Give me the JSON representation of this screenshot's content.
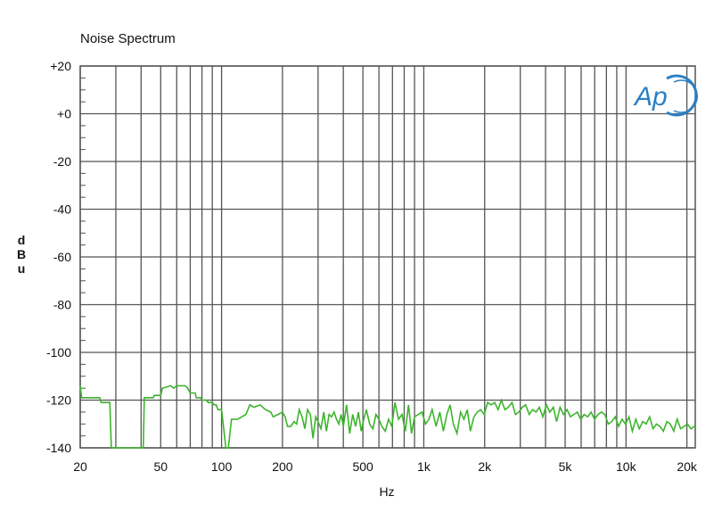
{
  "chart_data": {
    "type": "line",
    "title": "Noise Spectrum",
    "xlabel": "Hz",
    "ylabel": "dBu",
    "xscale": "log",
    "xlim": [
      20,
      22000
    ],
    "ylim": [
      -140,
      20
    ],
    "grid": true,
    "x_ticks": [
      {
        "value": 20,
        "label": "20"
      },
      {
        "value": 50,
        "label": "50"
      },
      {
        "value": 100,
        "label": "100"
      },
      {
        "value": 200,
        "label": "200"
      },
      {
        "value": 500,
        "label": "500"
      },
      {
        "value": 1000,
        "label": "1k"
      },
      {
        "value": 2000,
        "label": "2k"
      },
      {
        "value": 5000,
        "label": "5k"
      },
      {
        "value": 10000,
        "label": "10k"
      },
      {
        "value": 20000,
        "label": "20k"
      }
    ],
    "y_ticks": [
      {
        "value": 20,
        "label": "+20"
      },
      {
        "value": 0,
        "label": "+0"
      },
      {
        "value": -20,
        "label": "-20"
      },
      {
        "value": -40,
        "label": "-40"
      },
      {
        "value": -60,
        "label": "-60"
      },
      {
        "value": -80,
        "label": "-80"
      },
      {
        "value": -100,
        "label": "-100"
      },
      {
        "value": -120,
        "label": "-120"
      },
      {
        "value": -140,
        "label": "-140"
      }
    ],
    "series": [
      {
        "color": "#3cb52c",
        "x": [
          20,
          20.3,
          25,
          25.4,
          28,
          28.5,
          34,
          36,
          37,
          40,
          40.5,
          41,
          41.5,
          46,
          46.5,
          50,
          51,
          56,
          58,
          60,
          66,
          68,
          70,
          74,
          75,
          79,
          80,
          84,
          86,
          90,
          92,
          94,
          96,
          100,
          105,
          108,
          112,
          120,
          132,
          138,
          145,
          155,
          165,
          175,
          180,
          190,
          200,
          206,
          212,
          220,
          228,
          235,
          242,
          250,
          258,
          266,
          275,
          283,
          292,
          300,
          310,
          320,
          330,
          340,
          350,
          360,
          370,
          380,
          390,
          400,
          415,
          430,
          445,
          460,
          475,
          490,
          505,
          520,
          540,
          560,
          580,
          600,
          620,
          645,
          670,
          695,
          720,
          750,
          780,
          810,
          840,
          870,
          900,
          940,
          980,
          1020,
          1060,
          1100,
          1150,
          1200,
          1250,
          1300,
          1350,
          1400,
          1460,
          1520,
          1580,
          1640,
          1700,
          1770,
          1840,
          1910,
          1990,
          2070,
          2150,
          2240,
          2330,
          2420,
          2520,
          2620,
          2730,
          2840,
          2950,
          3070,
          3190,
          3320,
          3450,
          3590,
          3730,
          3880,
          4040,
          4200,
          4370,
          4540,
          4720,
          4910,
          5110,
          5310,
          5520,
          5740,
          5970,
          6210,
          6460,
          6720,
          6990,
          7270,
          7560,
          7860,
          8170,
          8500,
          8840,
          9190,
          9560,
          9940,
          10340,
          10750,
          11180,
          11630,
          12100,
          12580,
          13080,
          13600,
          14150,
          14720,
          15310,
          15920,
          16560,
          17220,
          17910,
          18630,
          19370,
          20150,
          20950,
          21790,
          22000
        ],
        "y": [
          -114,
          -119,
          -119,
          -121,
          -121,
          -140,
          -140,
          -140,
          -140,
          -140,
          -140,
          -140,
          -119,
          -119,
          -118,
          -118,
          -115,
          -114,
          -115,
          -114,
          -114,
          -115,
          -117,
          -117,
          -119,
          -119,
          -120,
          -120,
          -121,
          -121,
          -122,
          -122,
          -124,
          -124,
          -140,
          -140,
          -128,
          -128,
          -126,
          -122,
          -123,
          -122,
          -124,
          -125,
          -127,
          -126,
          -125,
          -127,
          -131,
          -131,
          -129,
          -130,
          -124,
          -127,
          -132,
          -124,
          -126,
          -136,
          -127,
          -129,
          -132,
          -125,
          -133,
          -126,
          -127,
          -125,
          -128,
          -130,
          -126,
          -131,
          -122,
          -134,
          -126,
          -131,
          -125,
          -133,
          -128,
          -124,
          -130,
          -132,
          -126,
          -128,
          -131,
          -133,
          -128,
          -131,
          -121,
          -128,
          -126,
          -133,
          -122,
          -134,
          -127,
          -126,
          -125,
          -130,
          -128,
          -124,
          -131,
          -125,
          -133,
          -126,
          -122,
          -130,
          -134,
          -125,
          -128,
          -124,
          -133,
          -127,
          -125,
          -124,
          -126,
          -121,
          -122,
          -121,
          -124,
          -120,
          -124,
          -123,
          -121,
          -126,
          -125,
          -123,
          -122,
          -126,
          -124,
          -125,
          -123,
          -127,
          -122,
          -125,
          -123,
          -129,
          -123,
          -126,
          -124,
          -127,
          -126,
          -125,
          -128,
          -126,
          -127,
          -125,
          -128,
          -126,
          -125,
          -126,
          -130,
          -129,
          -127,
          -131,
          -128,
          -130,
          -127,
          -133,
          -128,
          -132,
          -129,
          -130,
          -127,
          -132,
          -130,
          -131,
          -133,
          -129,
          -130,
          -133,
          -128,
          -132,
          -131,
          -130,
          -132,
          -131,
          -131
        ]
      }
    ]
  },
  "logo": {
    "text": "Ap",
    "color": "#2b7fc4"
  }
}
